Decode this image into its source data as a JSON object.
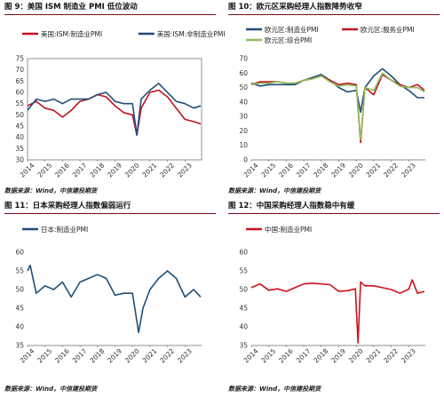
{
  "panels": [
    {
      "title": "图 9：美国 ISM 制造业 PMI 低位波动",
      "source": "数据来源：Wind，中信建投期货"
    },
    {
      "title": "图 10：欧元区采购经理人指数降势收窄",
      "source": "数据来源：Wind，中信建投期货"
    },
    {
      "title": "图 11：日本采购经理人指数偏弱运行",
      "source": "数据来源：Wind，中信建投期货"
    },
    {
      "title": "图 12：中国采购经理人指数稳中有缓",
      "source": "数据来源：Wind，中信建投期货"
    }
  ],
  "chart_data": [
    {
      "type": "line",
      "xlabel": "",
      "ylabel": "",
      "x": [
        2014,
        2014.5,
        2015,
        2015.5,
        2016,
        2016.5,
        2017,
        2017.5,
        2018,
        2018.5,
        2019,
        2019.5,
        2020,
        2020.25,
        2020.5,
        2021,
        2021.5,
        2022,
        2022.5,
        2023,
        2023.5,
        2023.9
      ],
      "xlim": [
        2014,
        2023.95
      ],
      "ylim": [
        30,
        75
      ],
      "yticks": [
        30,
        35,
        40,
        45,
        50,
        55,
        60,
        65,
        70,
        75
      ],
      "xticks": [
        2014,
        2015,
        2016,
        2017,
        2018,
        2019,
        2020,
        2021,
        2022,
        2023
      ],
      "legend_position": "top",
      "series": [
        {
          "name": "美国:ISM:制造业PMI",
          "color": "#c0121f",
          "values": [
            54,
            56,
            53,
            52,
            49,
            52,
            56,
            57,
            59,
            58,
            54,
            51,
            50,
            41,
            53,
            60,
            61,
            58,
            53,
            48,
            47,
            46
          ]
        },
        {
          "name": "美国:ISM:非制造业PMI",
          "color": "#1f4e79",
          "values": [
            52,
            57,
            56,
            57,
            55,
            57,
            57,
            57,
            59,
            60,
            56,
            55,
            55,
            41,
            57,
            61,
            64,
            60,
            56,
            55,
            53,
            54
          ]
        }
      ]
    },
    {
      "type": "line",
      "x": [
        2014,
        2014.5,
        2015,
        2015.5,
        2016,
        2016.5,
        2017,
        2017.5,
        2018,
        2018.5,
        2019,
        2019.5,
        2020,
        2020.25,
        2020.5,
        2021,
        2021.5,
        2022,
        2022.5,
        2023,
        2023.5,
        2023.9
      ],
      "xlim": [
        2014,
        23.95
      ],
      "ylim": [
        0,
        70
      ],
      "yticks": [
        0,
        10,
        20,
        30,
        40,
        50,
        60,
        70
      ],
      "xticks": [
        2014,
        2015,
        2016,
        2017,
        2018,
        2019,
        2020,
        2021,
        2022,
        2023
      ],
      "legend_position": "top",
      "series": [
        {
          "name": "欧元区:制造业PMI",
          "color": "#1f4e79",
          "values": [
            53,
            51,
            52,
            52,
            52,
            52,
            55,
            57,
            59,
            55,
            50,
            47,
            48,
            33,
            50,
            58,
            63,
            58,
            52,
            48,
            43,
            43
          ]
        },
        {
          "name": "欧元区:服务业PMI",
          "color": "#c0121f",
          "values": [
            52,
            54,
            54,
            54,
            53,
            53,
            55,
            56,
            58,
            55,
            52,
            53,
            52,
            12,
            50,
            45,
            59,
            55,
            52,
            50,
            52,
            48
          ]
        },
        {
          "name": "欧元区:综合PMI",
          "color": "#8fbf5a",
          "values": [
            52,
            53,
            53,
            54,
            53,
            53,
            55,
            56,
            58,
            54,
            51,
            52,
            51,
            14,
            50,
            48,
            60,
            55,
            51,
            50,
            50,
            47
          ]
        }
      ]
    },
    {
      "type": "line",
      "x": [
        2014,
        2014.15,
        2014.5,
        2015,
        2015.5,
        2016,
        2016.5,
        2017,
        2017.5,
        2018,
        2018.5,
        2019,
        2019.5,
        2020,
        2020.35,
        2020.6,
        2021,
        2021.5,
        2022,
        2022.5,
        2023,
        2023.5,
        2023.9
      ],
      "xlim": [
        2014,
        2023.95
      ],
      "ylim": [
        35,
        60
      ],
      "yticks": [
        35,
        40,
        45,
        50,
        55,
        60
      ],
      "xticks": [
        2014,
        2015,
        2016,
        2017,
        2018,
        2019,
        2020,
        2021,
        2022,
        2023
      ],
      "legend_position": "top",
      "series": [
        {
          "name": "日本:制造业PMI",
          "color": "#1f4e79",
          "values": [
            55,
            56.5,
            49,
            51,
            50,
            52,
            48,
            52,
            53,
            54,
            53,
            48.5,
            49,
            49,
            38.5,
            45,
            50,
            53,
            55,
            53,
            48,
            50,
            48
          ]
        }
      ]
    },
    {
      "type": "line",
      "x": [
        2014,
        2014.5,
        2015,
        2015.5,
        2016,
        2016.5,
        2017,
        2017.5,
        2018,
        2018.5,
        2019,
        2019.5,
        2019.95,
        2020.1,
        2020.25,
        2020.5,
        2021,
        2021.5,
        2022,
        2022.5,
        2023,
        2023.2,
        2023.5,
        2023.9
      ],
      "xlim": [
        2014,
        2023.95
      ],
      "ylim": [
        35,
        60
      ],
      "yticks": [
        35,
        40,
        45,
        50,
        55,
        60
      ],
      "xticks": [
        2014,
        2015,
        2016,
        2017,
        2018,
        2019,
        2020,
        2021,
        2022,
        2023
      ],
      "legend_position": "top",
      "series": [
        {
          "name": "中国:制造业PMI",
          "color": "#d0101c",
          "values": [
            50.5,
            51.5,
            49.8,
            50.2,
            49.5,
            50.5,
            51.5,
            51.7,
            51.5,
            51.3,
            49.5,
            49.7,
            50.2,
            35.7,
            52,
            51,
            51,
            50.5,
            50,
            49,
            50.1,
            52.6,
            49,
            49.5
          ]
        }
      ]
    }
  ]
}
